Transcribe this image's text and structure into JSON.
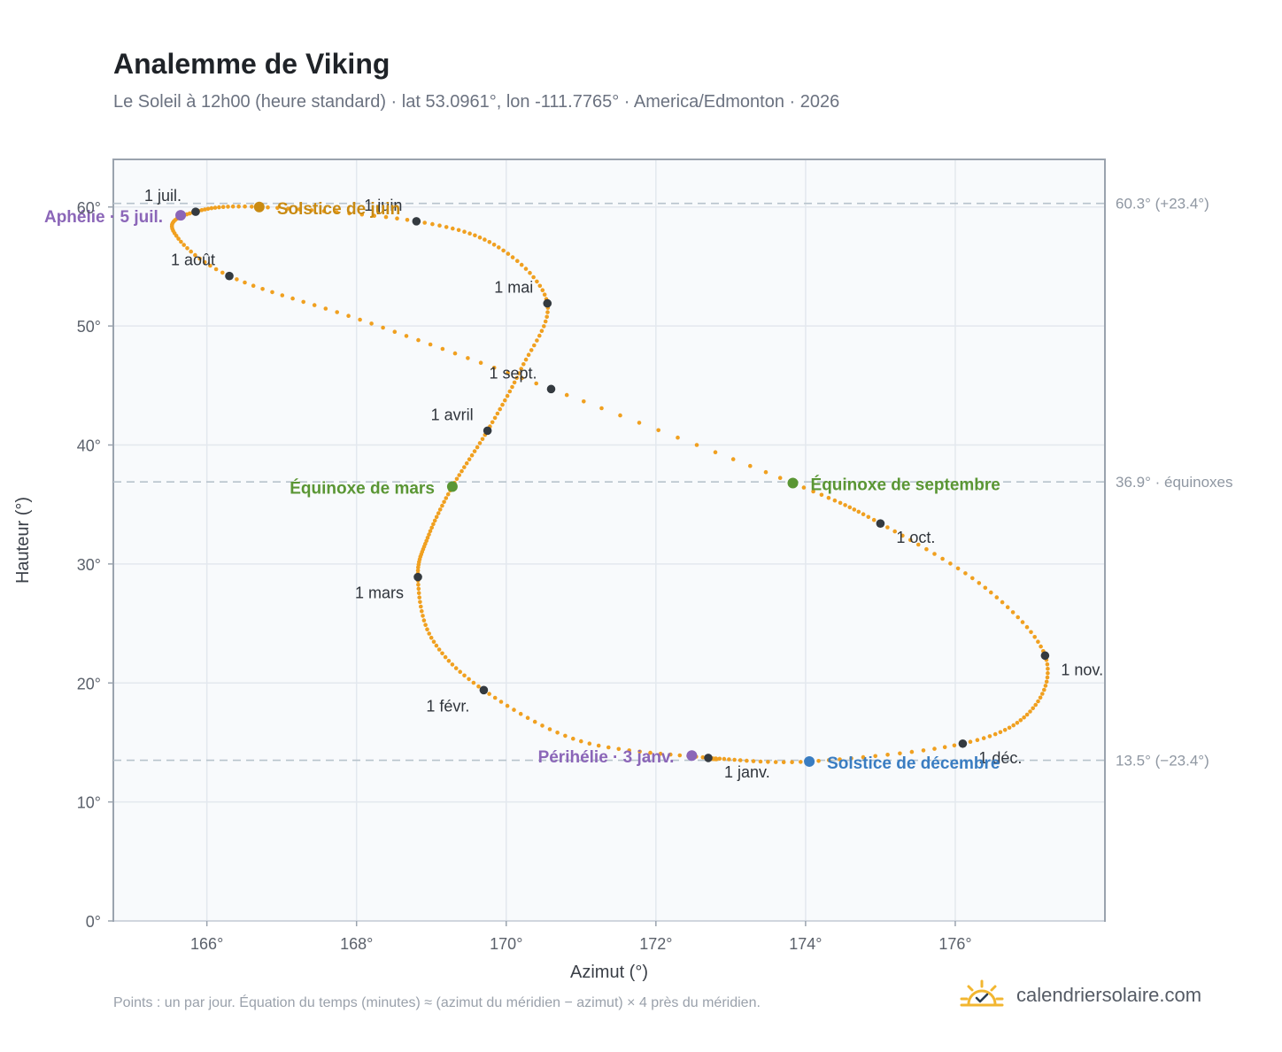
{
  "header": {
    "title": "Analemme de Viking",
    "subtitle": "Le Soleil à 12h00 (heure standard) · lat 53.0961°, lon -111.7765° · America/Edmonton · 2026"
  },
  "footer": {
    "note": "Points : un par jour. Équation du temps (minutes) ≈ (azimut du méridien − azimut) × 4 près du méridien.",
    "brand": "calendriersolaire.com",
    "brand_icon": "sun-check-icon"
  },
  "colors": {
    "curve": "#f0a020",
    "month_marker": "#343a40",
    "solstice_june": "#c98a12",
    "solstice_december": "#3a7dc2",
    "equinox": "#5a9634",
    "apsis": "#8b66b8",
    "plot_bg": "#f8fafc",
    "grid": "#e3e8ee",
    "reference_line": "#b7c3cc"
  },
  "chart_data": {
    "type": "scatter",
    "xlabel": "Azimut (°)",
    "ylabel": "Hauteur (°)",
    "xlim": [
      164.75,
      178.0
    ],
    "ylim": [
      0,
      64
    ],
    "x_ticks": [
      166,
      168,
      170,
      172,
      174,
      176
    ],
    "x_tick_labels": [
      "166°",
      "168°",
      "170°",
      "172°",
      "174°",
      "176°"
    ],
    "y_ticks": [
      0,
      10,
      20,
      30,
      40,
      50,
      60
    ],
    "y_tick_labels": [
      "0°",
      "10°",
      "20°",
      "30°",
      "40°",
      "50°",
      "60°"
    ],
    "grid": true,
    "series": [
      {
        "points_per": "day",
        "points": [
          {
            "date": "01-01",
            "x": 172.7,
            "y": 13.7
          },
          {
            "date": "01-15",
            "x": 171.0,
            "y": 15.1
          },
          {
            "date": "02-01",
            "x": 169.7,
            "y": 19.4
          },
          {
            "date": "02-15",
            "x": 169.0,
            "y": 23.8
          },
          {
            "date": "03-01",
            "x": 168.82,
            "y": 28.9
          },
          {
            "date": "03-10",
            "x": 168.95,
            "y": 32.2
          },
          {
            "date": "03-20",
            "x": 169.28,
            "y": 36.5
          },
          {
            "date": "04-01",
            "x": 169.75,
            "y": 41.2
          },
          {
            "date": "04-15",
            "x": 170.2,
            "y": 46.4
          },
          {
            "date": "05-01",
            "x": 170.55,
            "y": 51.9
          },
          {
            "date": "05-15",
            "x": 169.9,
            "y": 56.6
          },
          {
            "date": "06-01",
            "x": 168.8,
            "y": 58.8
          },
          {
            "date": "06-21",
            "x": 166.7,
            "y": 60.0
          },
          {
            "date": "07-01",
            "x": 165.85,
            "y": 59.6
          },
          {
            "date": "07-15",
            "x": 165.55,
            "y": 58.0
          },
          {
            "date": "08-01",
            "x": 166.3,
            "y": 54.2
          },
          {
            "date": "08-15",
            "x": 168.2,
            "y": 50.2
          },
          {
            "date": "09-01",
            "x": 170.6,
            "y": 44.7
          },
          {
            "date": "09-22",
            "x": 173.83,
            "y": 36.8
          },
          {
            "date": "10-01",
            "x": 175.0,
            "y": 33.4
          },
          {
            "date": "10-15",
            "x": 176.4,
            "y": 28.0
          },
          {
            "date": "11-01",
            "x": 177.2,
            "y": 22.3
          },
          {
            "date": "11-15",
            "x": 177.0,
            "y": 17.6
          },
          {
            "date": "12-01",
            "x": 176.1,
            "y": 14.9
          },
          {
            "date": "12-21",
            "x": 174.05,
            "y": 13.4
          },
          {
            "date": "12-31",
            "x": 172.8,
            "y": 13.65
          }
        ]
      }
    ],
    "month_markers": [
      {
        "label": "1 janv.",
        "x": 172.7,
        "y": 13.7,
        "label_side": "below-right"
      },
      {
        "label": "1 févr.",
        "x": 169.7,
        "y": 19.4,
        "label_side": "below-left"
      },
      {
        "label": "1 mars",
        "x": 168.82,
        "y": 28.9,
        "label_side": "below-left"
      },
      {
        "label": "1 avril",
        "x": 169.75,
        "y": 41.2,
        "label_side": "above-left"
      },
      {
        "label": "1 mai",
        "x": 170.55,
        "y": 51.9,
        "label_side": "above-left"
      },
      {
        "label": "1 juin",
        "x": 168.8,
        "y": 58.8,
        "label_side": "above-left"
      },
      {
        "label": "1 juil.",
        "x": 165.85,
        "y": 59.6,
        "label_side": "above-left"
      },
      {
        "label": "1 août",
        "x": 166.3,
        "y": 54.2,
        "label_side": "above-left"
      },
      {
        "label": "1 sept.",
        "x": 170.6,
        "y": 44.7,
        "label_side": "above-left"
      },
      {
        "label": "1 oct.",
        "x": 175.0,
        "y": 33.4,
        "label_side": "below-right"
      },
      {
        "label": "1 nov.",
        "x": 177.2,
        "y": 22.3,
        "label_side": "below-right"
      },
      {
        "label": "1 déc.",
        "x": 176.1,
        "y": 14.9,
        "label_side": "below-right"
      }
    ],
    "events": [
      {
        "label": "Solstice de juin",
        "x": 166.7,
        "y": 60.0,
        "kind": "solstice_june",
        "label_side": "right"
      },
      {
        "label": "Aphélie · 5 juil.",
        "x": 165.65,
        "y": 59.3,
        "kind": "apsis",
        "label_side": "left"
      },
      {
        "label": "Équinoxe de mars",
        "x": 169.28,
        "y": 36.5,
        "kind": "equinox",
        "label_side": "left"
      },
      {
        "label": "Équinoxe de septembre",
        "x": 173.83,
        "y": 36.8,
        "kind": "equinox",
        "label_side": "right"
      },
      {
        "label": "Périhélie · 3 janv.",
        "x": 172.48,
        "y": 13.9,
        "kind": "apsis",
        "label_side": "left"
      },
      {
        "label": "Solstice de décembre",
        "x": 174.05,
        "y": 13.4,
        "kind": "solstice_december",
        "label_side": "right"
      }
    ],
    "reference_lines": [
      {
        "y": 60.3,
        "label": "60.3° (+23.4°)"
      },
      {
        "y": 36.9,
        "label": "36.9° · équinoxes"
      },
      {
        "y": 13.5,
        "label": "13.5° (−23.4°)"
      }
    ]
  }
}
